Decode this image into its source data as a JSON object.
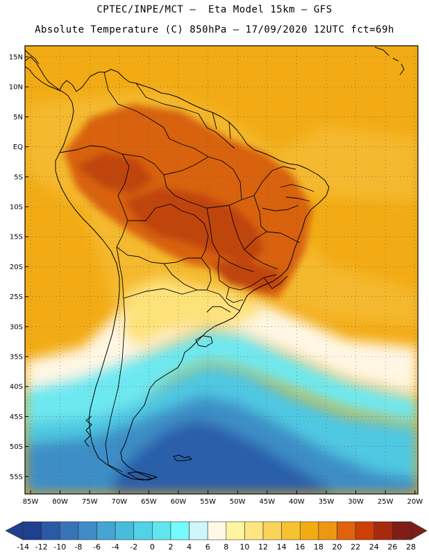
{
  "title_line1": "CPTEC/INPE/MCT –  Eta Model 15km – GFS",
  "title_line2": "Absolute Temperature (C) 850hPa – 17/09/2020 12UTC fct=69h",
  "lat_labels": [
    "15N",
    "10N",
    "5N",
    "EQ",
    "5S",
    "10S",
    "15S",
    "20S",
    "25S",
    "30S",
    "35S",
    "40S",
    "45S",
    "50S",
    "55S"
  ],
  "lon_labels": [
    "85W",
    "80W",
    "75W",
    "70W",
    "65W",
    "60W",
    "55W",
    "50W",
    "45W",
    "40W",
    "35W",
    "30W",
    "25W",
    "20W"
  ],
  "colorbar": {
    "ticks": [
      "-14",
      "-12",
      "-10",
      "-8",
      "-6",
      "-4",
      "-2",
      "0",
      "2",
      "4",
      "6",
      "8",
      "10",
      "12",
      "14",
      "16",
      "18",
      "20",
      "22",
      "24",
      "26",
      "28"
    ],
    "colors": [
      "#1f3f8f",
      "#1f3f8f",
      "#2a5aa6",
      "#3774b6",
      "#3f8cc6",
      "#44a4d4",
      "#47bcdc",
      "#52d2e6",
      "#5fe6ee",
      "#77fafa",
      "#cdf5fa",
      "#fff8e6",
      "#fff4a0",
      "#fde682",
      "#fad45a",
      "#f6c232",
      "#f2ac12",
      "#ee9812",
      "#e0620a",
      "#cc4008",
      "#a82a0e",
      "#7e1e16",
      "#7e1e16"
    ]
  },
  "colors": {
    "ocean_deep": "#2c5eaa",
    "ocean_mid": "#3d8ec6",
    "ocean_light": "#4fc8e2",
    "cyan": "#6ee8f0",
    "cream": "#fff7e4",
    "yellow": "#fde27a",
    "warm_orange": "#f2ab14",
    "orange": "#ee9812",
    "dark_orange": "#d8620c",
    "brick": "#c0440c"
  }
}
